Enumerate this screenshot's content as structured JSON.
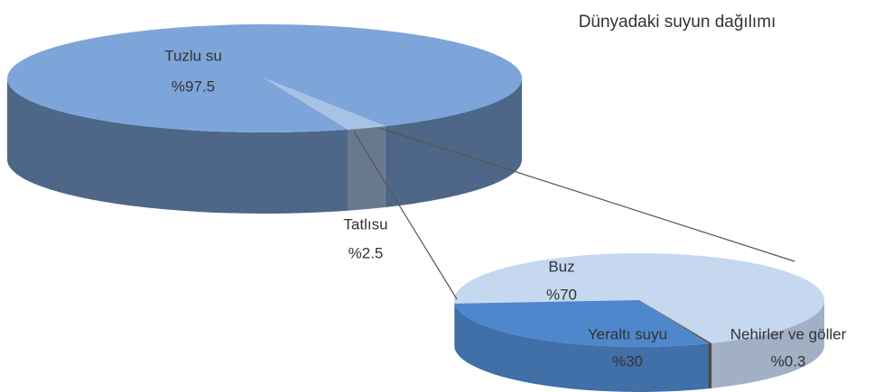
{
  "chart_data": [
    {
      "type": "pie",
      "title": "Dünyadaki suyun dağılımı",
      "categories": [
        "Tuzlu su",
        "Tatlısu"
      ],
      "values": [
        97.5,
        2.5
      ],
      "value_labels": [
        "%97.5",
        "%2.5"
      ],
      "colors": [
        "#7ea5d9",
        "#a8c2e6"
      ]
    },
    {
      "type": "pie",
      "categories": [
        "Buz",
        "Yeraltı suyu",
        "Nehirler ve göller"
      ],
      "values": [
        70,
        30,
        0.3
      ],
      "value_labels": [
        "%70",
        "%30",
        "%0.3"
      ],
      "colors": [
        "#c6d7f0",
        "#4f87cc",
        "#5a5a5a"
      ]
    }
  ]
}
